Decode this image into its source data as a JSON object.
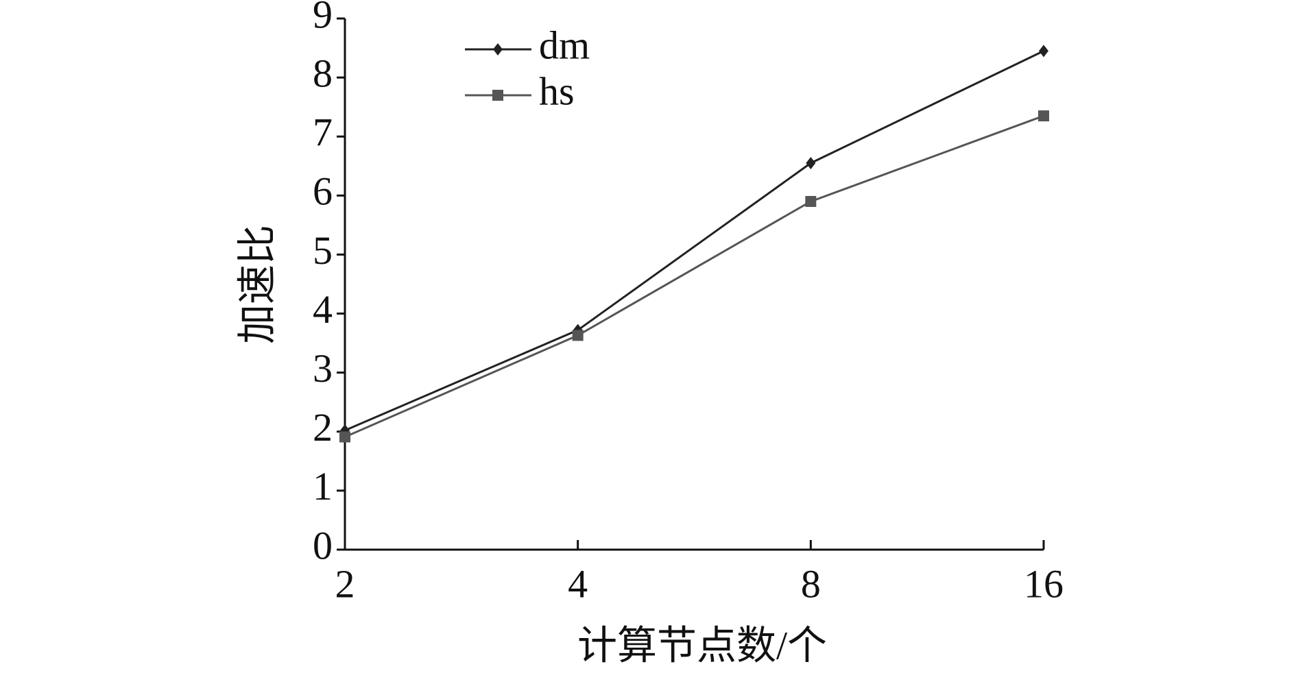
{
  "chart_data": {
    "type": "line",
    "xlabel": "计算节点数/个",
    "ylabel": "加速比",
    "x": [
      2,
      4,
      8,
      16
    ],
    "xlim": [
      2,
      16
    ],
    "xticks": [
      2,
      4,
      8,
      16
    ],
    "xscale": "log",
    "ylim": [
      0,
      9
    ],
    "yticks": [
      0,
      1,
      2,
      3,
      4,
      5,
      6,
      7,
      8,
      9
    ],
    "legend": "upper left",
    "series": [
      {
        "name": "dm",
        "color": "#222222",
        "marker": "diamond",
        "values": [
          2.02,
          3.72,
          6.55,
          8.45
        ]
      },
      {
        "name": "hs",
        "color": "#555555",
        "marker": "square",
        "values": [
          1.91,
          3.63,
          5.9,
          7.35
        ]
      }
    ]
  }
}
